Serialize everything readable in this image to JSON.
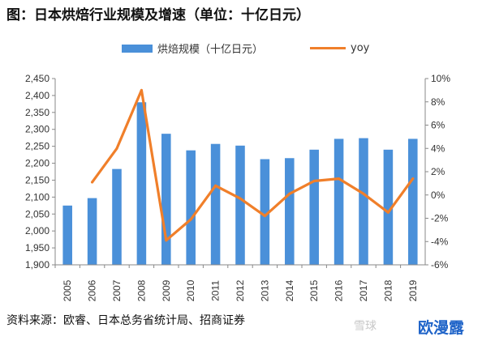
{
  "title": "图：日本烘焙行业规模及增速（单位：十亿日元）",
  "source": "资料来源：欧睿、日本总务省统计局、招商证券",
  "watermark": {
    "badge": "雪球",
    "brand": "欧漫露"
  },
  "colors": {
    "bar": "#4a90d9",
    "line": "#f07f2a",
    "axis": "#888888"
  },
  "chart_data": {
    "type": "bar",
    "categories": [
      "2005",
      "2006",
      "2007",
      "2008",
      "2009",
      "2010",
      "2011",
      "2012",
      "2013",
      "2014",
      "2015",
      "2016",
      "2017",
      "2018",
      "2019"
    ],
    "series": [
      {
        "name": "烘焙规模（十亿日元）",
        "type": "bar",
        "axis": "left",
        "values": [
          2075,
          2097,
          2183,
          2380,
          2287,
          2238,
          2257,
          2252,
          2212,
          2215,
          2240,
          2272,
          2274,
          2240,
          2272
        ]
      },
      {
        "name": "yoy",
        "type": "line",
        "axis": "right",
        "values": [
          null,
          1.1,
          4.0,
          9.0,
          -3.9,
          -2.1,
          0.8,
          -0.3,
          -1.8,
          0.1,
          1.2,
          1.4,
          0.1,
          -1.5,
          1.4
        ]
      }
    ],
    "y_left": {
      "min": 1900,
      "max": 2450,
      "step": 50
    },
    "y_right": {
      "min": -6,
      "max": 10,
      "step": 2,
      "unit": "%"
    },
    "legend_position": "top",
    "grid": false
  }
}
